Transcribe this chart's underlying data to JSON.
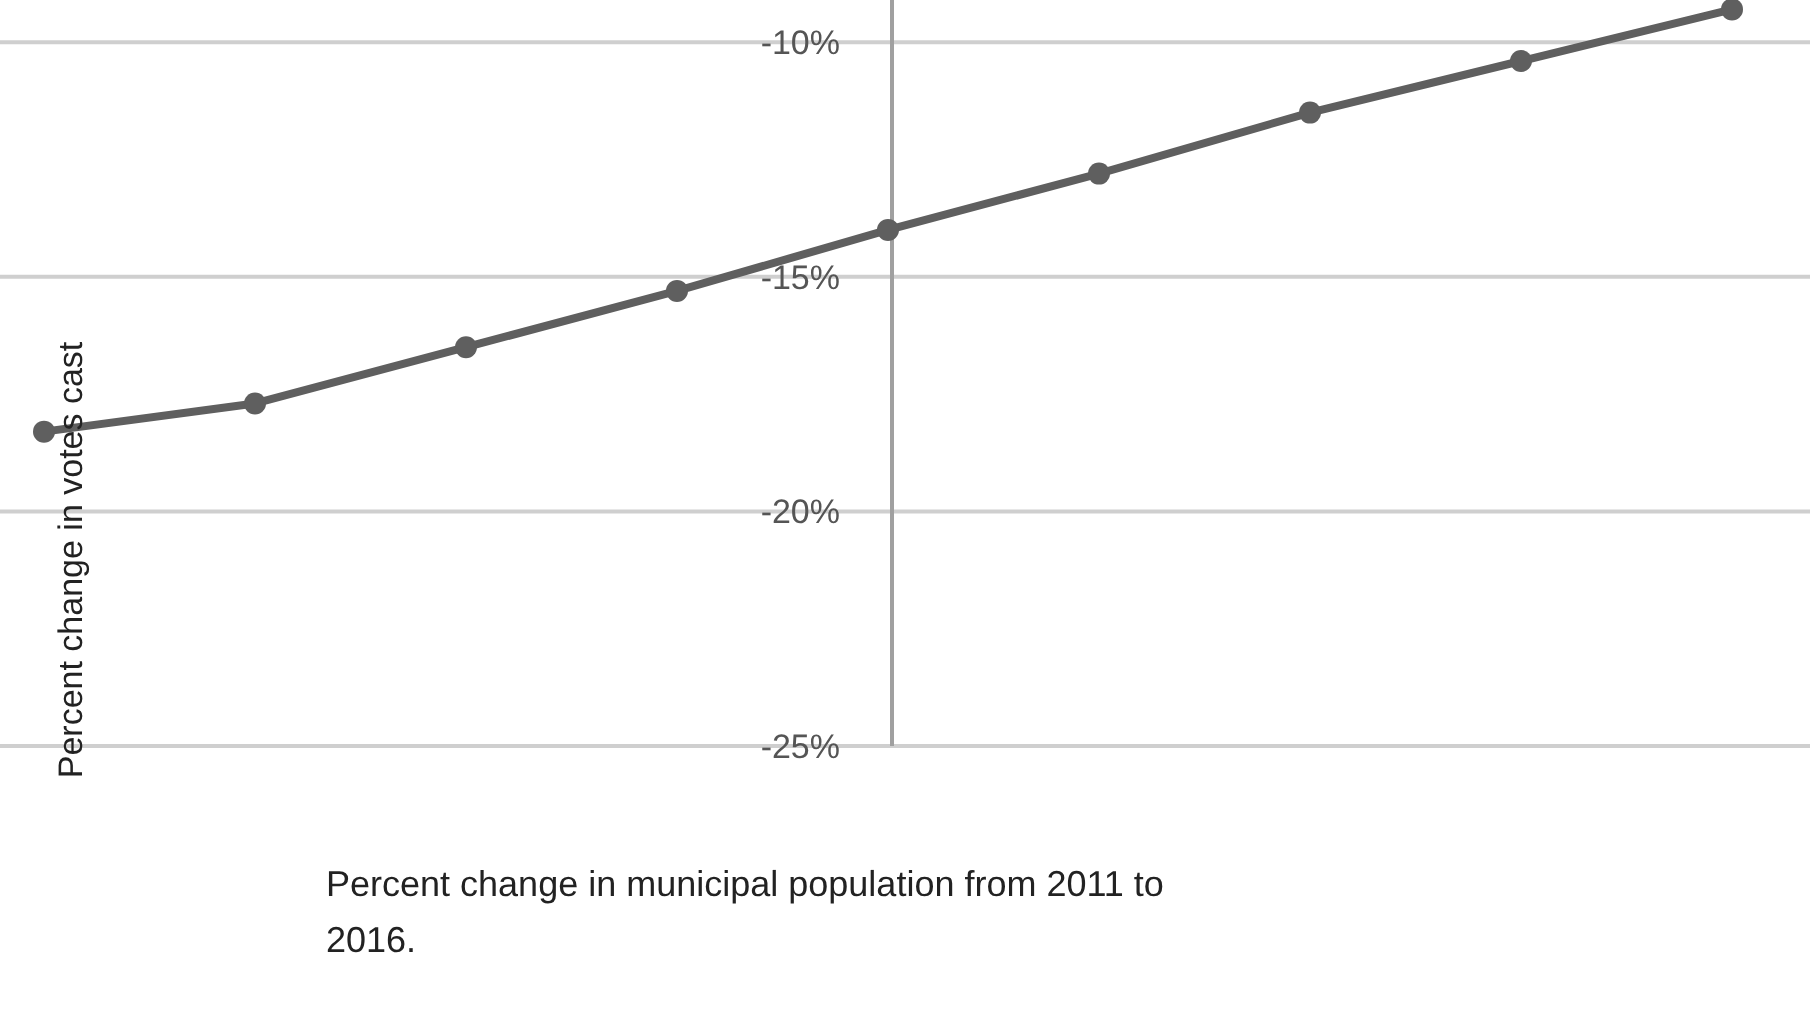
{
  "chart_data": {
    "type": "line",
    "xlabel": "Percent change in municipal population from 2011 to 2016.",
    "ylabel": "Percent change in votes cast",
    "categories": [
      null,
      null,
      null,
      null,
      null,
      null,
      null,
      null,
      null
    ],
    "series": [
      {
        "color": "#5f5f5f",
        "values": [
          -18.3,
          -17.7,
          -16.5,
          -15.3,
          -14.0,
          -12.8,
          -11.5,
          -10.4,
          -9.3
        ]
      }
    ],
    "ylim": [
      -25,
      -9.1
    ],
    "yticks": [
      {
        "value": -10,
        "label": "-10%"
      },
      {
        "value": -15,
        "label": "-15%"
      },
      {
        "value": -20,
        "label": "-20%"
      },
      {
        "value": -25,
        "label": "-25%"
      }
    ],
    "grid": "y",
    "marker": "circle",
    "line_style": "solid",
    "tick_labels": "y"
  }
}
